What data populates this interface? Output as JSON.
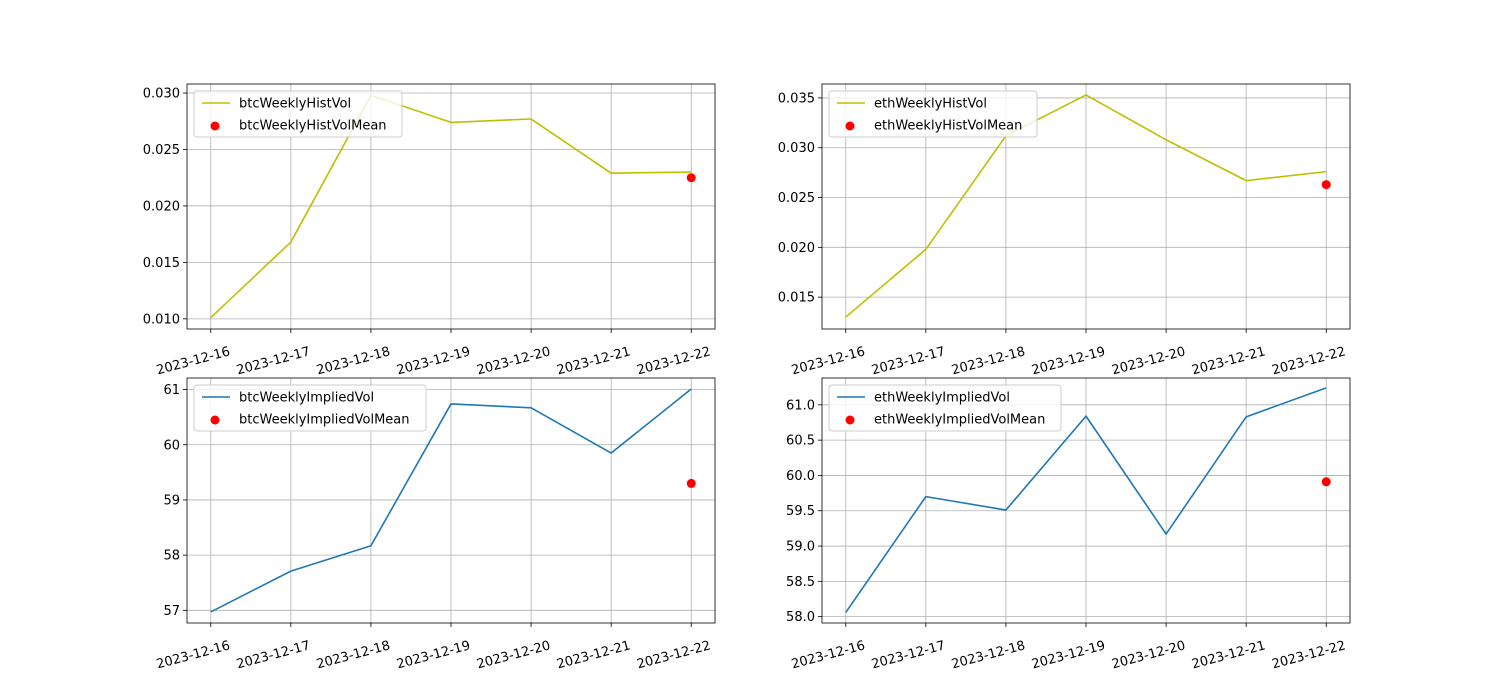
{
  "chart_data": [
    {
      "type": "line",
      "x": [
        "2023-12-16",
        "2023-12-17",
        "2023-12-18",
        "2023-12-19",
        "2023-12-20",
        "2023-12-21",
        "2023-12-22"
      ],
      "series": [
        {
          "name": "btcWeeklyHistVol",
          "kind": "line",
          "color": "#bfbf00",
          "values": [
            0.0101,
            0.0168,
            0.0298,
            0.0274,
            0.0277,
            0.0229,
            0.023
          ]
        },
        {
          "name": "btcWeeklyHistVolMean",
          "kind": "scatter",
          "color": "#ff0000",
          "points": [
            {
              "x": "2023-12-22",
              "y": 0.0225
            }
          ]
        }
      ],
      "yticks": [
        0.01,
        0.015,
        0.02,
        0.025,
        0.03
      ],
      "ytick_labels": [
        "0.010",
        "0.015",
        "0.020",
        "0.025",
        "0.030"
      ],
      "ylim": [
        0.0091,
        0.0308
      ],
      "grid": true,
      "legend": "top-left"
    },
    {
      "type": "line",
      "x": [
        "2023-12-16",
        "2023-12-17",
        "2023-12-18",
        "2023-12-19",
        "2023-12-20",
        "2023-12-21",
        "2023-12-22"
      ],
      "series": [
        {
          "name": "ethWeeklyHistVol",
          "kind": "line",
          "color": "#bfbf00",
          "values": [
            0.013,
            0.0198,
            0.0312,
            0.0353,
            0.0308,
            0.0267,
            0.0276
          ]
        },
        {
          "name": "ethWeeklyHistVolMean",
          "kind": "scatter",
          "color": "#ff0000",
          "points": [
            {
              "x": "2023-12-22",
              "y": 0.0263
            }
          ]
        }
      ],
      "yticks": [
        0.015,
        0.02,
        0.025,
        0.03,
        0.035
      ],
      "ytick_labels": [
        "0.015",
        "0.020",
        "0.025",
        "0.030",
        "0.035"
      ],
      "ylim": [
        0.0118,
        0.0364
      ],
      "grid": true,
      "legend": "top-left"
    },
    {
      "type": "line",
      "x": [
        "2023-12-16",
        "2023-12-17",
        "2023-12-18",
        "2023-12-19",
        "2023-12-20",
        "2023-12-21",
        "2023-12-22"
      ],
      "series": [
        {
          "name": "btcWeeklyImpliedVol",
          "kind": "line",
          "color": "#1f77b4",
          "values": [
            56.97,
            57.71,
            58.17,
            60.74,
            60.67,
            59.85,
            61.01
          ]
        },
        {
          "name": "btcWeeklyImpliedVolMean",
          "kind": "scatter",
          "color": "#ff0000",
          "points": [
            {
              "x": "2023-12-22",
              "y": 59.3
            }
          ]
        }
      ],
      "yticks": [
        57,
        58,
        59,
        60,
        61
      ],
      "ytick_labels": [
        "57",
        "58",
        "59",
        "60",
        "61"
      ],
      "ylim": [
        56.77,
        61.21
      ],
      "grid": true,
      "legend": "top-left"
    },
    {
      "type": "line",
      "x": [
        "2023-12-16",
        "2023-12-17",
        "2023-12-18",
        "2023-12-19",
        "2023-12-20",
        "2023-12-21",
        "2023-12-22"
      ],
      "series": [
        {
          "name": "ethWeeklyImpliedVol",
          "kind": "line",
          "color": "#1f77b4",
          "values": [
            58.06,
            59.7,
            59.51,
            60.84,
            59.17,
            60.83,
            61.24
          ]
        },
        {
          "name": "ethWeeklyImpliedVolMean",
          "kind": "scatter",
          "color": "#ff0000",
          "points": [
            {
              "x": "2023-12-22",
              "y": 59.91
            }
          ]
        }
      ],
      "yticks": [
        58.0,
        58.5,
        59.0,
        59.5,
        60.0,
        60.5,
        61.0
      ],
      "ytick_labels": [
        "58.0",
        "58.5",
        "59.0",
        "59.5",
        "60.0",
        "60.5",
        "61.0"
      ],
      "ylim": [
        57.91,
        61.38
      ],
      "grid": true,
      "legend": "top-left"
    }
  ]
}
